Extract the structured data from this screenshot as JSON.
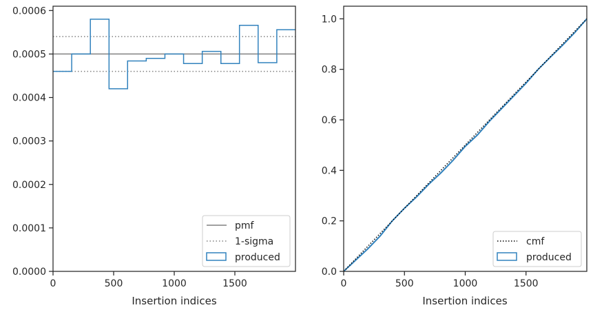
{
  "chart_data": [
    {
      "type": "step-histogram",
      "title": "",
      "xlabel": "Insertion indices",
      "ylabel": "",
      "xlim": [
        0,
        2000
      ],
      "ylim": [
        0,
        0.00061
      ],
      "xticks": [
        0,
        500,
        1000,
        1500
      ],
      "xtick_labels": [
        "0",
        "500",
        "1000",
        "1500"
      ],
      "yticks": [
        0,
        0.0001,
        0.0002,
        0.0003,
        0.0004,
        0.0005,
        0.0006
      ],
      "ytick_labels": [
        "0.0000",
        "0.0001",
        "0.0002",
        "0.0003",
        "0.0004",
        "0.0005",
        "0.0006"
      ],
      "reference_lines": [
        {
          "name": "pmf",
          "value": 0.0005,
          "style": "solid",
          "color": "#808080"
        },
        {
          "name": "1-sigma",
          "value": 0.00054,
          "style": "dotted",
          "color": "#808080"
        },
        {
          "name": "1-sigma",
          "value": 0.00046,
          "style": "dotted",
          "color": "#808080"
        }
      ],
      "bin_edges": [
        0,
        154,
        308,
        462,
        615,
        769,
        923,
        1077,
        1231,
        1385,
        1538,
        1692,
        1846,
        2000
      ],
      "series": [
        {
          "name": "produced",
          "color": "#3182bd",
          "values": [
            0.00046,
            0.0005,
            0.00058,
            0.00042,
            0.000484,
            0.00049,
            0.0005,
            0.000478,
            0.000506,
            0.000478,
            0.000566,
            0.00048,
            0.000556
          ]
        }
      ],
      "legend": {
        "position": "lower-right",
        "entries": [
          {
            "label": "pmf",
            "style": "solid",
            "color": "#808080"
          },
          {
            "label": "1-sigma",
            "style": "dotted",
            "color": "#808080"
          },
          {
            "label": "produced",
            "style": "box",
            "color": "#3182bd"
          }
        ]
      }
    },
    {
      "type": "line",
      "title": "",
      "xlabel": "Insertion indices",
      "ylabel": "",
      "xlim": [
        0,
        2000
      ],
      "ylim": [
        0,
        1.05
      ],
      "xticks": [
        0,
        500,
        1000,
        1500
      ],
      "xtick_labels": [
        "0",
        "500",
        "1000",
        "1500"
      ],
      "yticks": [
        0,
        0.2,
        0.4,
        0.6,
        0.8,
        1.0
      ],
      "ytick_labels": [
        "0.0",
        "0.2",
        "0.4",
        "0.6",
        "0.8",
        "1.0"
      ],
      "series": [
        {
          "name": "cmf",
          "style": "dotted",
          "color": "#000000",
          "x": [
            0,
            2000
          ],
          "y": [
            0,
            1.0
          ]
        },
        {
          "name": "produced",
          "style": "solid",
          "color": "#3182bd",
          "x": [
            0,
            100,
            200,
            300,
            400,
            500,
            600,
            700,
            800,
            900,
            1000,
            1100,
            1200,
            1300,
            1400,
            1500,
            1600,
            1700,
            1800,
            1900,
            2000
          ],
          "y": [
            0,
            0.045,
            0.09,
            0.14,
            0.2,
            0.25,
            0.295,
            0.345,
            0.39,
            0.44,
            0.495,
            0.54,
            0.595,
            0.645,
            0.695,
            0.745,
            0.8,
            0.848,
            0.895,
            0.945,
            1.0
          ]
        }
      ],
      "legend": {
        "position": "lower-right",
        "entries": [
          {
            "label": "cmf",
            "style": "dotted",
            "color": "#000000"
          },
          {
            "label": "produced",
            "style": "box",
            "color": "#3182bd"
          }
        ]
      }
    }
  ]
}
